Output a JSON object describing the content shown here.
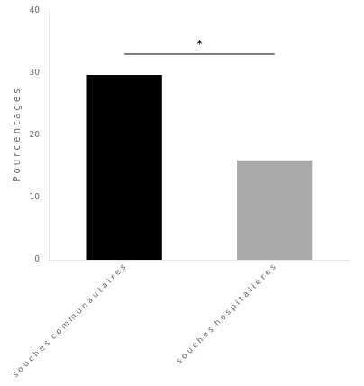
{
  "chart_data": {
    "type": "bar",
    "categories": [
      "s o u c h e s  c o m m u n a u t a i r e s",
      "s o u c h e s  h o s p i t a l i è r e s"
    ],
    "values": [
      29.7,
      16.0
    ],
    "colors": [
      "#000000",
      "#a9a9a9"
    ],
    "ylabel": "P o u r c e n t a g e s",
    "ylim": [
      0,
      40
    ],
    "yticks": [
      0,
      10,
      20,
      30,
      40
    ],
    "grid": false,
    "annotations": [
      {
        "text": "*",
        "y": 34.5
      }
    ]
  }
}
